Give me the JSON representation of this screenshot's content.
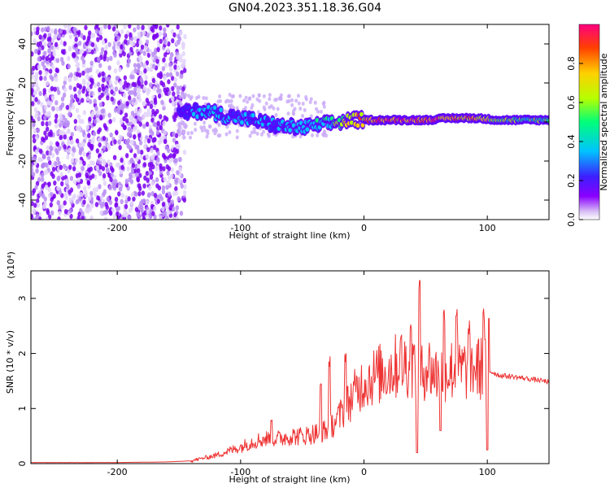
{
  "figure": {
    "title": "GN04.2023.351.18.36.G04"
  },
  "chart_data": [
    {
      "type": "heatmap",
      "title": "",
      "xlabel": "Height of straight line (km)",
      "ylabel": "Frequency (Hz)",
      "xlim": [
        -270,
        150
      ],
      "ylim": [
        -50,
        50
      ],
      "x_ticks": [
        -200,
        -100,
        0,
        100
      ],
      "y_ticks": [
        -40,
        -20,
        0,
        20,
        40
      ],
      "colorbar": {
        "label": "Normalized spectral amplitude",
        "range": [
          0,
          1
        ],
        "ticks": [
          0.0,
          0.2,
          0.4,
          0.6,
          0.8
        ],
        "colors": [
          "#ffffff",
          "#d9c2f5",
          "#8a00ff",
          "#3d1fff",
          "#00c3ff",
          "#00ff7a",
          "#b5ff00",
          "#ffd000",
          "#ff4000",
          "#ff0080"
        ]
      },
      "ridge": [
        {
          "x": -150,
          "y": 4,
          "amp": 0.35
        },
        {
          "x": -130,
          "y": 6,
          "amp": 0.45
        },
        {
          "x": -110,
          "y": 3,
          "amp": 0.45
        },
        {
          "x": -90,
          "y": 1,
          "amp": 0.4
        },
        {
          "x": -70,
          "y": -2,
          "amp": 0.4
        },
        {
          "x": -50,
          "y": -3,
          "amp": 0.45
        },
        {
          "x": -30,
          "y": -1,
          "amp": 0.5
        },
        {
          "x": -10,
          "y": 1,
          "amp": 0.8
        },
        {
          "x": 10,
          "y": 1,
          "amp": 0.9
        },
        {
          "x": 30,
          "y": 1,
          "amp": 0.9
        },
        {
          "x": 50,
          "y": 1,
          "amp": 0.9
        },
        {
          "x": 70,
          "y": 2,
          "amp": 0.85
        },
        {
          "x": 90,
          "y": 2,
          "amp": 0.85
        },
        {
          "x": 110,
          "y": 1,
          "amp": 0.6
        },
        {
          "x": 150,
          "y": 1,
          "amp": 0.6
        }
      ]
    },
    {
      "type": "line",
      "title": "",
      "xlabel": "Height of straight line (km)",
      "ylabel": "SNR (10 * v/v)",
      "y_multiplier": "(x10⁴)",
      "xlim": [
        -270,
        150
      ],
      "ylim": [
        0,
        3.5
      ],
      "x_ticks": [
        -200,
        -100,
        0,
        100
      ],
      "y_ticks": [
        0,
        1,
        2,
        3
      ],
      "line_color": "#ee3333",
      "x": [
        -270,
        -250,
        -200,
        -160,
        -140,
        -120,
        -100,
        -90,
        -80,
        -70,
        -60,
        -50,
        -40,
        -30,
        -20,
        -10,
        0,
        10,
        20,
        30,
        35,
        40,
        45,
        50,
        60,
        70,
        80,
        90,
        100,
        105,
        110,
        120,
        130,
        140,
        150
      ],
      "y": [
        0.02,
        0.02,
        0.02,
        0.03,
        0.05,
        0.15,
        0.3,
        0.4,
        0.45,
        0.45,
        0.5,
        0.5,
        0.55,
        0.6,
        0.85,
        1.2,
        1.5,
        1.6,
        1.7,
        1.8,
        1.8,
        1.8,
        1.5,
        1.8,
        1.6,
        1.7,
        1.7,
        1.75,
        1.7,
        1.65,
        1.6,
        1.58,
        1.55,
        1.52,
        1.48
      ],
      "spikes": [
        {
          "x": -75,
          "y": 0.85
        },
        {
          "x": -35,
          "y": 1.5
        },
        {
          "x": -28,
          "y": 1.95
        },
        {
          "x": -15,
          "y": 2.05
        },
        {
          "x": 30,
          "y": 2.4
        },
        {
          "x": 38,
          "y": 2.7
        },
        {
          "x": 45,
          "y": 3.45
        },
        {
          "x": 65,
          "y": 2.85
        },
        {
          "x": 75,
          "y": 2.85
        },
        {
          "x": 85,
          "y": 2.6
        },
        {
          "x": 97,
          "y": 2.85
        },
        {
          "x": 101,
          "y": 2.8
        }
      ],
      "dips": [
        {
          "x": 43,
          "y": 0.2
        },
        {
          "x": 62,
          "y": 0.6
        },
        {
          "x": 100,
          "y": 0.25
        }
      ]
    }
  ]
}
